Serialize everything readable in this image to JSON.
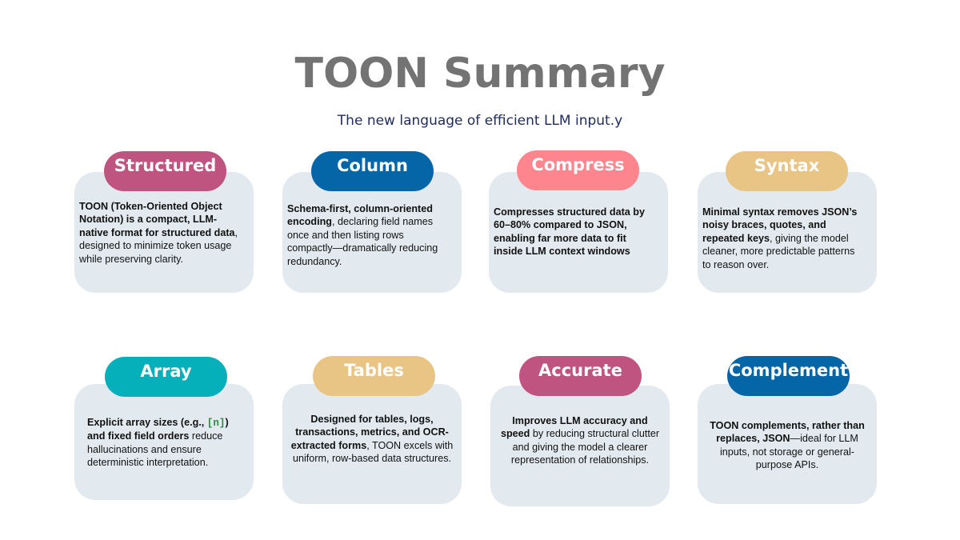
{
  "header": {
    "title": "TOON Summary",
    "subtitle": "The new language of efficient LLM input.y"
  },
  "cards": [
    {
      "label": "Structured",
      "color": "#c05480",
      "segments": [
        {
          "text": "TOON (Token-Oriented Object Notation) is a compact, LLM-native format for structured data",
          "bold": true
        },
        {
          "text": ", designed to minimize token usage while preserving clarity.",
          "bold": false
        }
      ]
    },
    {
      "label": "Column",
      "color": "#0466a6",
      "segments": [
        {
          "text": "Schema-first, column-oriented encoding",
          "bold": true
        },
        {
          "text": ", declaring field names once and then listing rows compactly—dramatically reducing redundancy.",
          "bold": false
        }
      ]
    },
    {
      "label": "Compress",
      "color": "#fd868e",
      "segments": [
        {
          "text": "Compresses structured data by 60–80% compared to JSON, enabling far more data to fit inside LLM context windows",
          "bold": true
        }
      ]
    },
    {
      "label": "Syntax",
      "color": "#e8c485",
      "segments": [
        {
          "text": "Minimal syntax removes JSON’s noisy braces, quotes, and repeated keys",
          "bold": true
        },
        {
          "text": ", giving the model cleaner, more predictable patterns to reason over.",
          "bold": false
        }
      ]
    },
    {
      "label": "Array",
      "color": "#05b0bb",
      "segments": [
        {
          "text": "Explicit array sizes (e.g., ",
          "bold": true
        },
        {
          "text": "[n]",
          "bold": true,
          "code": true
        },
        {
          "text": ") and fixed field orders",
          "bold": true
        },
        {
          "text": " reduce hallucinations and ensure deterministic interpretation.",
          "bold": false
        }
      ]
    },
    {
      "label": "Tables",
      "color": "#e8c485",
      "segments": [
        {
          "text": "Designed for tables, logs, transactions, metrics, and OCR-extracted forms",
          "bold": true
        },
        {
          "text": ", TOON excels with uniform, row-based data structures.",
          "bold": false
        }
      ]
    },
    {
      "label": "Accurate",
      "color": "#c05480",
      "segments": [
        {
          "text": "Improves LLM accuracy and speed",
          "bold": true
        },
        {
          "text": " by reducing structural clutter and giving the model a clearer representation of relationships.",
          "bold": false
        }
      ]
    },
    {
      "label": "Complement",
      "color": "#0466a6",
      "segments": [
        {
          "text": "TOON complements, rather than replaces, JSON",
          "bold": true
        },
        {
          "text": "—ideal for LLM inputs, not storage or general-purpose APIs.",
          "bold": false
        }
      ]
    }
  ]
}
